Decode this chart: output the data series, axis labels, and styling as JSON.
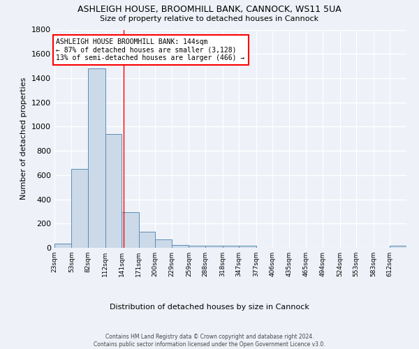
{
  "title1": "ASHLEIGH HOUSE, BROOMHILL BANK, CANNOCK, WS11 5UA",
  "title2": "Size of property relative to detached houses in Cannock",
  "xlabel": "Distribution of detached houses by size in Cannock",
  "ylabel": "Number of detached properties",
  "bin_edges": [
    23,
    53,
    82,
    112,
    141,
    171,
    200,
    229,
    259,
    288,
    318,
    347,
    377,
    406,
    435,
    465,
    494,
    524,
    553,
    583,
    612
  ],
  "bar_heights": [
    35,
    650,
    1480,
    940,
    295,
    130,
    70,
    25,
    20,
    15,
    15,
    15,
    0,
    0,
    0,
    0,
    0,
    0,
    0,
    0,
    15
  ],
  "bar_color": "#ccd9e8",
  "bar_edge_color": "#5b8db8",
  "red_line_x": 144,
  "annotation_line1": "ASHLEIGH HOUSE BROOMHILL BANK: 144sqm",
  "annotation_line2": "← 87% of detached houses are smaller (3,128)",
  "annotation_line3": "13% of semi-detached houses are larger (466) →",
  "annotation_box_color": "white",
  "annotation_box_edge_color": "red",
  "ylim": [
    0,
    1800
  ],
  "yticks": [
    0,
    200,
    400,
    600,
    800,
    1000,
    1200,
    1400,
    1600,
    1800
  ],
  "footer": "Contains HM Land Registry data © Crown copyright and database right 2024.\nContains public sector information licensed under the Open Government Licence v3.0.",
  "bg_color": "#eef2f8",
  "grid_color": "white"
}
